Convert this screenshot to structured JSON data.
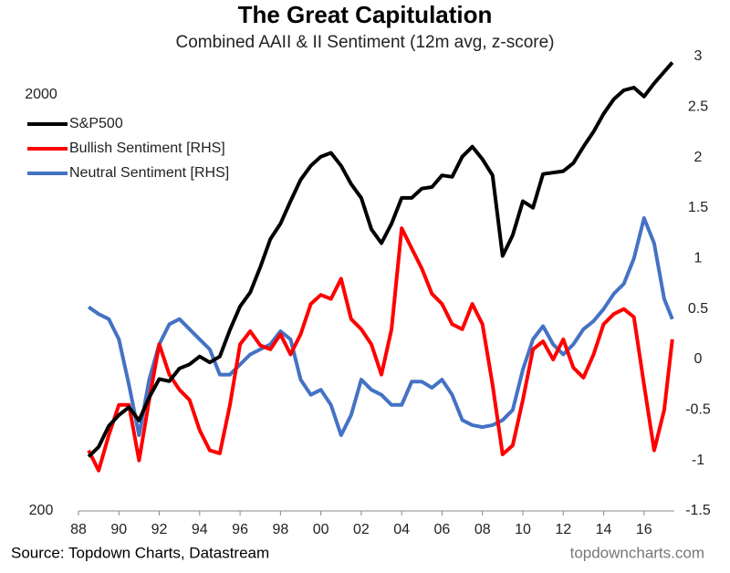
{
  "chart_data": {
    "type": "line",
    "title": "The Great Capitulation",
    "subtitle": "Combined AAII & II Sentiment (12m avg, z-score)",
    "source": "Source: Topdown Charts, Datastream",
    "credit": "topdowncharts.com",
    "x": [
      1988.5,
      1989,
      1989.5,
      1990,
      1990.5,
      1991,
      1991.5,
      1992,
      1992.5,
      1993,
      1993.5,
      1994,
      1994.5,
      1995,
      1995.5,
      1996,
      1996.5,
      1997,
      1997.5,
      1998,
      1998.5,
      1999,
      1999.5,
      2000,
      2000.5,
      2001,
      2001.5,
      2002,
      2002.5,
      2003,
      2003.5,
      2004,
      2004.5,
      2005,
      2005.5,
      2006,
      2006.5,
      2007,
      2007.5,
      2008,
      2008.5,
      2009,
      2009.5,
      2010,
      2010.5,
      2011,
      2011.5,
      2012,
      2012.5,
      2013,
      2013.5,
      2014,
      2014.5,
      2015,
      2015.5,
      2016,
      2016.5,
      2017,
      2017.4
    ],
    "xlim": [
      1988,
      2017.5
    ],
    "xticks": [
      {
        "value": 1988,
        "label": "88"
      },
      {
        "value": 1990,
        "label": "90"
      },
      {
        "value": 1992,
        "label": "92"
      },
      {
        "value": 1994,
        "label": "94"
      },
      {
        "value": 1996,
        "label": "96"
      },
      {
        "value": 1998,
        "label": "98"
      },
      {
        "value": 2000,
        "label": "00"
      },
      {
        "value": 2002,
        "label": "02"
      },
      {
        "value": 2004,
        "label": "04"
      },
      {
        "value": 2006,
        "label": "06"
      },
      {
        "value": 2008,
        "label": "08"
      },
      {
        "value": 2010,
        "label": "10"
      },
      {
        "value": 2012,
        "label": "12"
      },
      {
        "value": 2014,
        "label": "14"
      },
      {
        "value": 2016,
        "label": "16"
      }
    ],
    "ylim": [
      200,
      2470
    ],
    "log": true,
    "yticks": [
      200,
      2000
    ],
    "y2lim": [
      -1.5,
      3
    ],
    "y2ticks": [
      3,
      2.5,
      2,
      1.5,
      1,
      0.5,
      0,
      -0.5,
      -1,
      -1.5
    ],
    "grid": false,
    "legend": "top-left",
    "series": [
      {
        "name": "S&P500",
        "color": "#000000",
        "values": [
          270,
          285,
          320,
          340,
          355,
          330,
          375,
          415,
          410,
          440,
          450,
          470,
          455,
          470,
          545,
          620,
          670,
          770,
          900,
          980,
          1110,
          1250,
          1350,
          1420,
          1450,
          1350,
          1220,
          1130,
          950,
          880,
          980,
          1130,
          1130,
          1190,
          1200,
          1280,
          1270,
          1420,
          1500,
          1400,
          1280,
          820,
          920,
          1110,
          1070,
          1290,
          1300,
          1310,
          1370,
          1500,
          1630,
          1800,
          1950,
          2050,
          2080,
          1980,
          2130,
          2270,
          2390
        ]
      },
      {
        "name": "Bullish Sentiment [RHS]",
        "color": "#ff0000",
        "axis": "y2",
        "values": [
          -0.9,
          -1.1,
          -0.75,
          -0.45,
          -0.45,
          -1.0,
          -0.4,
          0.15,
          -0.15,
          -0.3,
          -0.4,
          -0.7,
          -0.9,
          -0.93,
          -0.45,
          0.15,
          0.28,
          0.14,
          0.1,
          0.25,
          0.05,
          0.25,
          0.55,
          0.64,
          0.6,
          0.8,
          0.4,
          0.3,
          0.15,
          -0.15,
          0.3,
          1.3,
          1.1,
          0.9,
          0.65,
          0.55,
          0.35,
          0.3,
          0.55,
          0.35,
          -0.25,
          -0.94,
          -0.85,
          -0.4,
          0.1,
          0.18,
          0.0,
          0.2,
          -0.08,
          -0.18,
          0.05,
          0.35,
          0.45,
          0.5,
          0.42,
          -0.25,
          -0.9,
          -0.5,
          0.2
        ]
      },
      {
        "name": "Neutral Sentiment [RHS]",
        "color": "#4472c4",
        "axis": "y2",
        "values": [
          0.52,
          0.45,
          0.4,
          0.2,
          -0.25,
          -0.75,
          -0.2,
          0.15,
          0.35,
          0.4,
          0.3,
          0.2,
          0.1,
          -0.15,
          -0.15,
          -0.05,
          0.05,
          0.1,
          0.15,
          0.28,
          0.2,
          -0.2,
          -0.35,
          -0.3,
          -0.45,
          -0.75,
          -0.55,
          -0.2,
          -0.3,
          -0.35,
          -0.45,
          -0.45,
          -0.22,
          -0.22,
          -0.28,
          -0.2,
          -0.35,
          -0.6,
          -0.65,
          -0.67,
          -0.65,
          -0.6,
          -0.5,
          -0.1,
          0.2,
          0.33,
          0.15,
          0.05,
          0.15,
          0.3,
          0.38,
          0.5,
          0.65,
          0.75,
          1.0,
          1.4,
          1.15,
          0.6,
          0.4
        ]
      }
    ]
  }
}
